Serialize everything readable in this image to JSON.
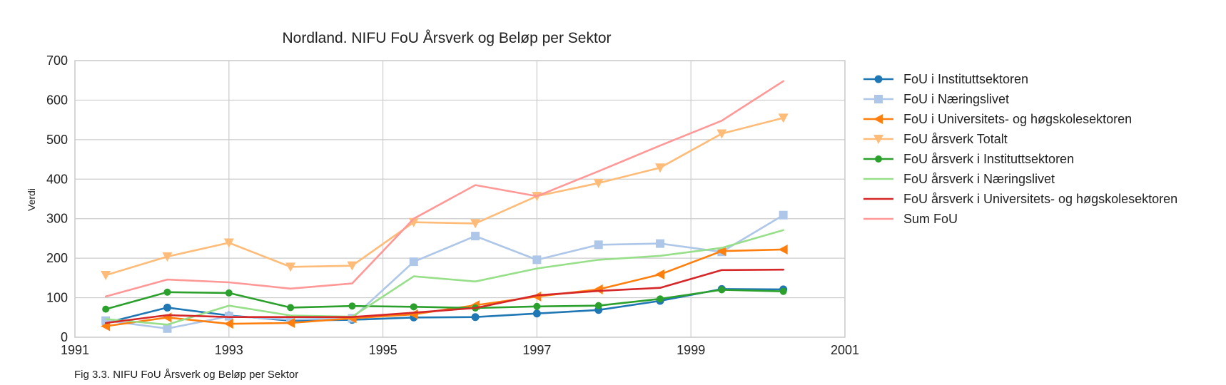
{
  "caption": "Fig 3.3. NIFU FoU Årsverk og Beløp per Sektor",
  "chart_data": {
    "type": "line",
    "title": "Nordland. NIFU FoU Årsverk og Beløp per Sektor",
    "xlabel": "",
    "ylabel": "Verdi",
    "xlim": [
      1991,
      2001
    ],
    "ylim": [
      0,
      700
    ],
    "xticks": [
      1991,
      1993,
      1995,
      1997,
      1999,
      2001
    ],
    "yticks": [
      0,
      100,
      200,
      300,
      400,
      500,
      600,
      700
    ],
    "x": [
      1991.4,
      1992.2,
      1993.0,
      1993.8,
      1994.6,
      1995.4,
      1996.2,
      1997.0,
      1997.8,
      1998.6,
      1999.4,
      2000.2
    ],
    "grid": true,
    "legend_position": "outside-right",
    "series": [
      {
        "name": "FoU i Instituttsektoren",
        "color": "#1f77b4",
        "marker": "circle",
        "values": [
          36,
          75,
          55,
          42,
          44,
          50,
          51,
          60,
          69,
          92,
          122,
          121
        ]
      },
      {
        "name": "FoU i Næringslivet",
        "color": "#aec7e8",
        "marker": "square",
        "values": [
          42,
          22,
          53,
          45,
          48,
          191,
          256,
          196,
          234,
          237,
          216,
          309
        ]
      },
      {
        "name": "FoU i Universitets- og høgskolesektoren",
        "color": "#ff7f0e",
        "marker": "triangle-left",
        "values": [
          28,
          50,
          34,
          36,
          48,
          58,
          81,
          103,
          121,
          159,
          218,
          222
        ]
      },
      {
        "name": "FoU årsverk Totalt",
        "color": "#ffbb78",
        "marker": "triangle-down",
        "values": [
          157,
          204,
          239,
          178,
          181,
          291,
          288,
          357,
          390,
          429,
          515,
          555
        ]
      },
      {
        "name": "FoU årsverk i Instituttsektoren",
        "color": "#2ca02c",
        "marker": "circle-small",
        "values": [
          71,
          114,
          112,
          75,
          79,
          77,
          74,
          78,
          80,
          97,
          120,
          116
        ]
      },
      {
        "name": "FoU årsverk i Næringslivet",
        "color": "#98df8a",
        "marker": "none",
        "values": [
          46,
          32,
          80,
          55,
          52,
          154,
          141,
          174,
          196,
          206,
          226,
          271
        ]
      },
      {
        "name": "FoU årsverk i Universitets- og høgskolesektoren",
        "color": "#d62728",
        "marker": "none",
        "values": [
          36,
          56,
          51,
          51,
          51,
          62,
          74,
          106,
          117,
          125,
          170,
          171
        ]
      },
      {
        "name": "Sum FoU",
        "color": "#ff9896",
        "marker": "none",
        "values": [
          103,
          146,
          139,
          123,
          136,
          300,
          385,
          357,
          420,
          485,
          548,
          648
        ]
      }
    ]
  }
}
